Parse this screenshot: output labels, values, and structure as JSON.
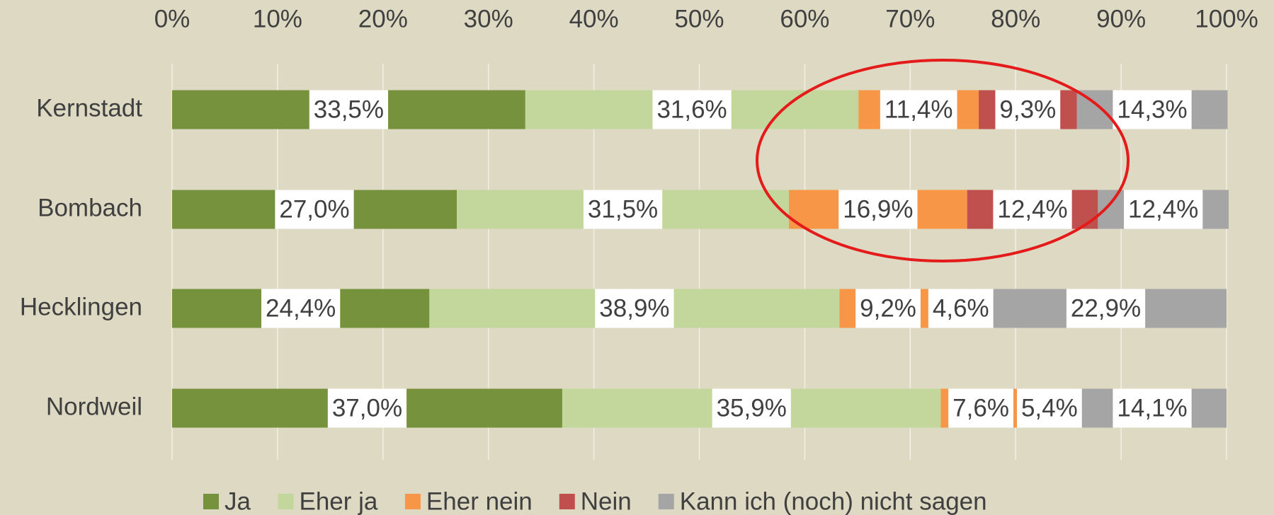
{
  "chart_data": {
    "type": "stacked_bar_horizontal_percent",
    "categories": [
      "Kernstadt",
      "Bombach",
      "Hecklingen",
      "Nordweil"
    ],
    "series": [
      {
        "name": "Ja",
        "color": "#76923c",
        "values": [
          33.5,
          27.0,
          24.4,
          37.0
        ],
        "value_labels": [
          "33,5%",
          "27,0%",
          "24,4%",
          "37,0%"
        ]
      },
      {
        "name": "Eher ja",
        "color": "#c3d69b",
        "values": [
          31.6,
          31.5,
          38.9,
          35.9
        ],
        "value_labels": [
          "31,6%",
          "31,5%",
          "38,9%",
          "35,9%"
        ]
      },
      {
        "name": "Eher nein",
        "color": "#f79646",
        "values": [
          11.4,
          16.9,
          9.2,
          7.6
        ],
        "value_labels": [
          "11,4%",
          "16,9%",
          "9,2%",
          "7,6%"
        ]
      },
      {
        "name": "Nein",
        "color": "#c0504d",
        "values": [
          9.3,
          12.4,
          4.6,
          5.4
        ],
        "value_labels": [
          "9,3%",
          "12,4%",
          "4,6%",
          "5,4%"
        ]
      },
      {
        "name": "Kann ich (noch) nicht sagen",
        "color": "#a5a5a5",
        "values": [
          14.3,
          12.4,
          22.9,
          14.1
        ],
        "value_labels": [
          "14,3%",
          "12,4%",
          "22,9%",
          "14,1%"
        ]
      }
    ],
    "xlim": [
      0,
      100
    ],
    "xticks": [
      {
        "value": 0,
        "label": "0%"
      },
      {
        "value": 10,
        "label": "10%"
      },
      {
        "value": 20,
        "label": "20%"
      },
      {
        "value": 30,
        "label": "30%"
      },
      {
        "value": 40,
        "label": "40%"
      },
      {
        "value": 50,
        "label": "50%"
      },
      {
        "value": 60,
        "label": "60%"
      },
      {
        "value": 70,
        "label": "70%"
      },
      {
        "value": 80,
        "label": "80%"
      },
      {
        "value": 90,
        "label": "90%"
      },
      {
        "value": 100,
        "label": "100%"
      }
    ],
    "grid": true,
    "legend": "bottom"
  }
}
